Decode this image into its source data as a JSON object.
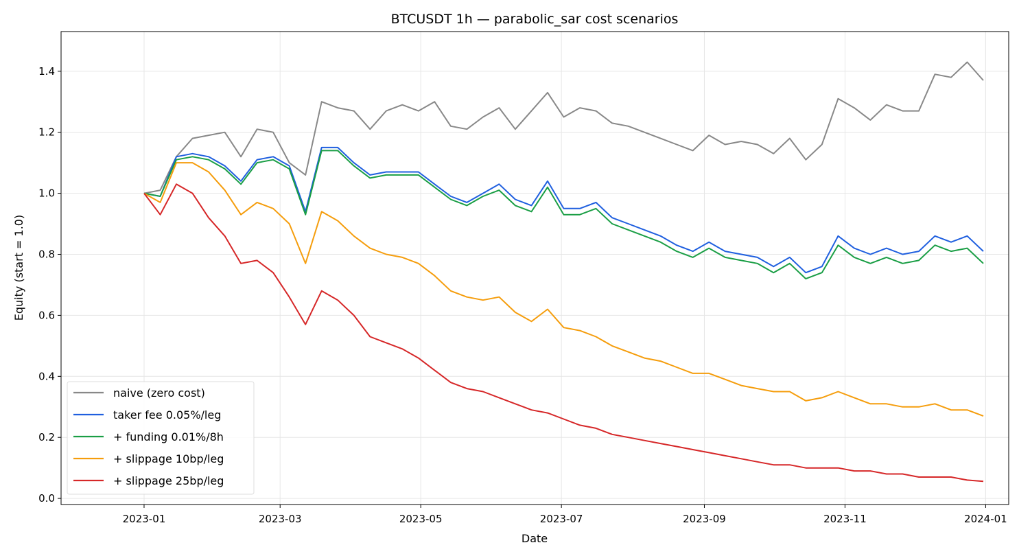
{
  "chart_data": {
    "type": "line",
    "title": "BTCUSDT 1h — parabolic_sar cost scenarios",
    "xlabel": "Date",
    "ylabel": "Equity (start = 1.0)",
    "xlim": [
      "2022-11-26",
      "2024-01-11"
    ],
    "ylim": [
      -0.02,
      1.53
    ],
    "grid": true,
    "legend_position": "lower-left",
    "x_ticks": [
      "2023-01",
      "2023-03",
      "2023-05",
      "2023-07",
      "2023-09",
      "2023-11",
      "2024-01"
    ],
    "y_ticks": [
      "0.0",
      "0.2",
      "0.4",
      "0.6",
      "0.8",
      "1.0",
      "1.2",
      "1.4"
    ],
    "x": [
      "2023-01-01",
      "2023-01-08",
      "2023-01-15",
      "2023-01-22",
      "2023-01-29",
      "2023-02-05",
      "2023-02-12",
      "2023-02-19",
      "2023-02-26",
      "2023-03-05",
      "2023-03-12",
      "2023-03-19",
      "2023-03-26",
      "2023-04-02",
      "2023-04-09",
      "2023-04-16",
      "2023-04-23",
      "2023-04-30",
      "2023-05-07",
      "2023-05-14",
      "2023-05-21",
      "2023-05-28",
      "2023-06-04",
      "2023-06-11",
      "2023-06-18",
      "2023-06-25",
      "2023-07-02",
      "2023-07-09",
      "2023-07-16",
      "2023-07-23",
      "2023-07-30",
      "2023-08-06",
      "2023-08-13",
      "2023-08-20",
      "2023-08-27",
      "2023-09-03",
      "2023-09-10",
      "2023-09-17",
      "2023-09-24",
      "2023-10-01",
      "2023-10-08",
      "2023-10-15",
      "2023-10-22",
      "2023-10-29",
      "2023-11-05",
      "2023-11-12",
      "2023-11-19",
      "2023-11-26",
      "2023-12-03",
      "2023-12-10",
      "2023-12-17",
      "2023-12-24",
      "2023-12-31"
    ],
    "series": [
      {
        "name": "naive (zero cost)",
        "color": "#888888",
        "values": [
          1.0,
          1.01,
          1.12,
          1.18,
          1.19,
          1.2,
          1.12,
          1.21,
          1.2,
          1.1,
          1.06,
          1.3,
          1.28,
          1.27,
          1.21,
          1.27,
          1.29,
          1.27,
          1.3,
          1.22,
          1.21,
          1.25,
          1.28,
          1.21,
          1.27,
          1.33,
          1.25,
          1.28,
          1.27,
          1.23,
          1.22,
          1.2,
          1.18,
          1.16,
          1.14,
          1.19,
          1.16,
          1.17,
          1.16,
          1.13,
          1.18,
          1.11,
          1.16,
          1.31,
          1.28,
          1.24,
          1.29,
          1.27,
          1.27,
          1.39,
          1.38,
          1.43,
          1.37
        ]
      },
      {
        "name": "taker fee 0.05%/leg",
        "color": "#1f5fdf",
        "values": [
          1.0,
          0.99,
          1.12,
          1.13,
          1.12,
          1.09,
          1.04,
          1.11,
          1.12,
          1.09,
          0.94,
          1.15,
          1.15,
          1.1,
          1.06,
          1.07,
          1.07,
          1.07,
          1.03,
          0.99,
          0.97,
          1.0,
          1.03,
          0.98,
          0.96,
          1.04,
          0.95,
          0.95,
          0.97,
          0.92,
          0.9,
          0.88,
          0.86,
          0.83,
          0.81,
          0.84,
          0.81,
          0.8,
          0.79,
          0.76,
          0.79,
          0.74,
          0.76,
          0.86,
          0.82,
          0.8,
          0.82,
          0.8,
          0.81,
          0.86,
          0.84,
          0.86,
          0.81
        ]
      },
      {
        "name": "+ funding 0.01%/8h",
        "color": "#1a9e45",
        "values": [
          1.0,
          0.99,
          1.11,
          1.12,
          1.11,
          1.08,
          1.03,
          1.1,
          1.11,
          1.08,
          0.93,
          1.14,
          1.14,
          1.09,
          1.05,
          1.06,
          1.06,
          1.06,
          1.02,
          0.98,
          0.96,
          0.99,
          1.01,
          0.96,
          0.94,
          1.02,
          0.93,
          0.93,
          0.95,
          0.9,
          0.88,
          0.86,
          0.84,
          0.81,
          0.79,
          0.82,
          0.79,
          0.78,
          0.77,
          0.74,
          0.77,
          0.72,
          0.74,
          0.83,
          0.79,
          0.77,
          0.79,
          0.77,
          0.78,
          0.83,
          0.81,
          0.82,
          0.77
        ]
      },
      {
        "name": "+ slippage 10bp/leg",
        "color": "#f59d0c",
        "values": [
          1.0,
          0.97,
          1.1,
          1.1,
          1.07,
          1.01,
          0.93,
          0.97,
          0.95,
          0.9,
          0.77,
          0.94,
          0.91,
          0.86,
          0.82,
          0.8,
          0.79,
          0.77,
          0.73,
          0.68,
          0.66,
          0.65,
          0.66,
          0.61,
          0.58,
          0.62,
          0.56,
          0.55,
          0.53,
          0.5,
          0.48,
          0.46,
          0.45,
          0.43,
          0.41,
          0.41,
          0.39,
          0.37,
          0.36,
          0.35,
          0.35,
          0.32,
          0.33,
          0.35,
          0.33,
          0.31,
          0.31,
          0.3,
          0.3,
          0.31,
          0.29,
          0.29,
          0.27
        ]
      },
      {
        "name": "+ slippage 25bp/leg",
        "color": "#d62728",
        "values": [
          1.0,
          0.93,
          1.03,
          1.0,
          0.92,
          0.86,
          0.77,
          0.78,
          0.74,
          0.66,
          0.57,
          0.68,
          0.65,
          0.6,
          0.53,
          0.51,
          0.49,
          0.46,
          0.42,
          0.38,
          0.36,
          0.35,
          0.33,
          0.31,
          0.29,
          0.28,
          0.26,
          0.24,
          0.23,
          0.21,
          0.2,
          0.19,
          0.18,
          0.17,
          0.16,
          0.15,
          0.14,
          0.13,
          0.12,
          0.11,
          0.11,
          0.1,
          0.1,
          0.1,
          0.09,
          0.09,
          0.08,
          0.08,
          0.07,
          0.07,
          0.07,
          0.06,
          0.056
        ]
      }
    ]
  }
}
